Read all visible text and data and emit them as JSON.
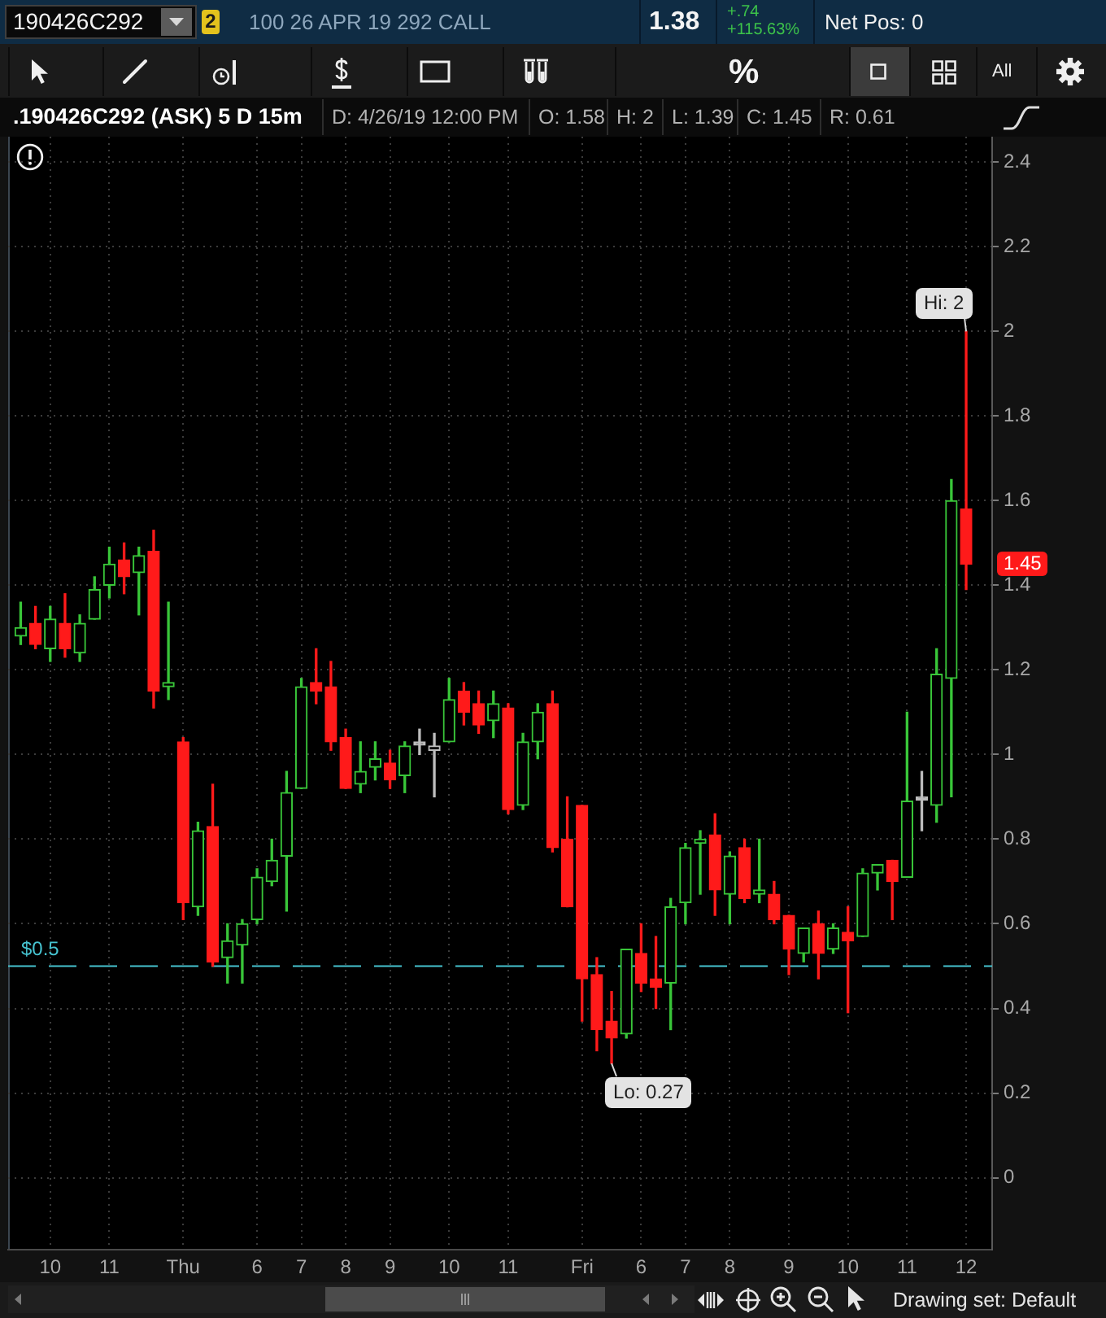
{
  "chart_data": {
    "type": "candlestick",
    "title": ".190426C292 (ASK) 5 D 15m",
    "categories": [
      null,
      null,
      "10",
      null,
      null,
      null,
      "11",
      null,
      null,
      null,
      null,
      "Thu",
      null,
      null,
      null,
      null,
      "6",
      null,
      null,
      "7",
      null,
      null,
      "8",
      null,
      null,
      "9",
      null,
      null,
      null,
      "10",
      null,
      null,
      null,
      "11",
      null,
      null,
      null,
      null,
      "Fri",
      null,
      null,
      null,
      "6",
      null,
      null,
      "7",
      null,
      null,
      "8",
      null,
      null,
      null,
      "9",
      null,
      null,
      null,
      "10",
      null,
      null,
      null,
      "11",
      null,
      null,
      null,
      "12"
    ],
    "ohlc": [
      [
        1.28,
        1.36,
        1.26,
        1.3
      ],
      [
        1.31,
        1.35,
        1.25,
        1.26
      ],
      [
        1.25,
        1.35,
        1.22,
        1.32
      ],
      [
        1.31,
        1.38,
        1.23,
        1.25
      ],
      [
        1.24,
        1.33,
        1.22,
        1.31
      ],
      [
        1.32,
        1.42,
        1.32,
        1.39
      ],
      [
        1.4,
        1.49,
        1.37,
        1.45
      ],
      [
        1.46,
        1.5,
        1.38,
        1.42
      ],
      [
        1.43,
        1.49,
        1.33,
        1.47
      ],
      [
        1.48,
        1.53,
        1.11,
        1.15
      ],
      [
        1.16,
        1.36,
        1.13,
        1.17
      ],
      [
        1.03,
        1.04,
        0.61,
        0.65
      ],
      [
        0.64,
        0.84,
        0.62,
        0.82
      ],
      [
        0.83,
        0.93,
        0.5,
        0.51
      ],
      [
        0.52,
        0.6,
        0.46,
        0.56
      ],
      [
        0.55,
        0.61,
        0.46,
        0.6
      ],
      [
        0.61,
        0.73,
        0.6,
        0.71
      ],
      [
        0.7,
        0.8,
        0.69,
        0.75
      ],
      [
        0.76,
        0.96,
        0.63,
        0.91
      ],
      [
        0.92,
        1.18,
        0.92,
        1.16
      ],
      [
        1.17,
        1.25,
        1.12,
        1.15
      ],
      [
        1.16,
        1.22,
        1.01,
        1.03
      ],
      [
        1.04,
        1.06,
        0.92,
        0.92
      ],
      [
        0.93,
        1.03,
        0.91,
        0.96
      ],
      [
        0.97,
        1.03,
        0.94,
        0.99
      ],
      [
        0.98,
        1.01,
        0.92,
        0.94
      ],
      [
        0.95,
        1.03,
        0.91,
        1.02
      ],
      [
        1.03,
        1.06,
        1.0,
        1.03
      ],
      [
        1.01,
        1.05,
        0.9,
        1.02
      ],
      [
        1.03,
        1.18,
        1.03,
        1.13
      ],
      [
        1.15,
        1.17,
        1.07,
        1.1
      ],
      [
        1.12,
        1.15,
        1.05,
        1.07
      ],
      [
        1.08,
        1.15,
        1.04,
        1.12
      ],
      [
        1.11,
        1.12,
        0.86,
        0.87
      ],
      [
        0.88,
        1.05,
        0.87,
        1.03
      ],
      [
        1.03,
        1.12,
        0.99,
        1.1
      ],
      [
        1.12,
        1.15,
        0.77,
        0.78
      ],
      [
        0.8,
        0.9,
        0.64,
        0.64
      ],
      [
        0.88,
        0.88,
        0.37,
        0.47
      ],
      [
        0.48,
        0.52,
        0.3,
        0.35
      ],
      [
        0.37,
        0.44,
        0.27,
        0.33
      ],
      [
        0.34,
        0.54,
        0.33,
        0.54
      ],
      [
        0.53,
        0.6,
        0.44,
        0.46
      ],
      [
        0.47,
        0.57,
        0.4,
        0.45
      ],
      [
        0.46,
        0.66,
        0.35,
        0.64
      ],
      [
        0.65,
        0.79,
        0.6,
        0.78
      ],
      [
        0.79,
        0.82,
        0.67,
        0.8
      ],
      [
        0.81,
        0.86,
        0.62,
        0.68
      ],
      [
        0.67,
        0.77,
        0.6,
        0.76
      ],
      [
        0.78,
        0.8,
        0.65,
        0.66
      ],
      [
        0.67,
        0.8,
        0.65,
        0.68
      ],
      [
        0.67,
        0.7,
        0.6,
        0.61
      ],
      [
        0.62,
        0.62,
        0.48,
        0.54
      ],
      [
        0.53,
        0.59,
        0.51,
        0.59
      ],
      [
        0.6,
        0.63,
        0.47,
        0.53
      ],
      [
        0.54,
        0.6,
        0.53,
        0.59
      ],
      [
        0.58,
        0.64,
        0.39,
        0.56
      ],
      [
        0.57,
        0.73,
        0.57,
        0.72
      ],
      [
        0.72,
        0.74,
        0.68,
        0.74
      ],
      [
        0.75,
        0.75,
        0.61,
        0.7
      ],
      [
        0.71,
        1.1,
        0.71,
        0.89
      ],
      [
        0.9,
        0.96,
        0.82,
        0.9
      ],
      [
        0.88,
        1.25,
        0.84,
        1.19
      ],
      [
        1.18,
        1.65,
        0.9,
        1.6
      ],
      [
        1.58,
        2,
        1.39,
        1.45
      ]
    ],
    "colors": [
      "#39c639",
      "#ff1a1a",
      "#39c639",
      "#ff1a1a",
      "#39c639",
      "#39c639",
      "#39c639",
      "#ff1a1a",
      "#39c639",
      "#ff1a1a",
      "#39c639",
      "#ff1a1a",
      "#39c639",
      "#ff1a1a",
      "#39c639",
      "#39c639",
      "#39c639",
      "#39c639",
      "#39c639",
      "#39c639",
      "#ff1a1a",
      "#ff1a1a",
      "#ff1a1a",
      "#39c639",
      "#39c639",
      "#ff1a1a",
      "#39c639",
      "#bdbdbd",
      "#bdbdbd",
      "#39c639",
      "#ff1a1a",
      "#ff1a1a",
      "#39c639",
      "#ff1a1a",
      "#39c639",
      "#39c639",
      "#ff1a1a",
      "#ff1a1a",
      "#ff1a1a",
      "#ff1a1a",
      "#ff1a1a",
      "#39c639",
      "#ff1a1a",
      "#ff1a1a",
      "#39c639",
      "#39c639",
      "#39c639",
      "#ff1a1a",
      "#39c639",
      "#ff1a1a",
      "#39c639",
      "#ff1a1a",
      "#ff1a1a",
      "#39c639",
      "#ff1a1a",
      "#39c639",
      "#ff1a1a",
      "#39c639",
      "#39c639",
      "#ff1a1a",
      "#39c639",
      "#bdbdbd",
      "#39c639",
      "#39c639",
      "#ff1a1a"
    ],
    "ylim": [
      -0.17,
      2.46
    ],
    "yticks": [
      0,
      0.2,
      0.4,
      0.6,
      0.8,
      1,
      1.2,
      1.4,
      1.6,
      1.8,
      2,
      2.2,
      2.4
    ],
    "grid": true,
    "ref_lines": [
      {
        "axis": "y",
        "value": 0.5,
        "label": "$0.5",
        "color": "#46c3d0",
        "line_style": "dashed"
      }
    ],
    "annotations": [
      "190426C292",
      "2",
      "100 26 APR 19 292 CALL",
      "1.38",
      "+.74",
      "+115.63%",
      "Net Pos: 0",
      "%",
      "All",
      "D: 4/26/19 12:00 PM",
      "O: 1.58",
      "H: 2",
      "L: 1.39",
      "C: 1.45",
      "R: 0.61",
      {
        "text": "Hi: 2",
        "x": "12",
        "y": 2
      },
      "Lo: 0.27",
      "1.45",
      "Drawing set: Default"
    ]
  }
}
